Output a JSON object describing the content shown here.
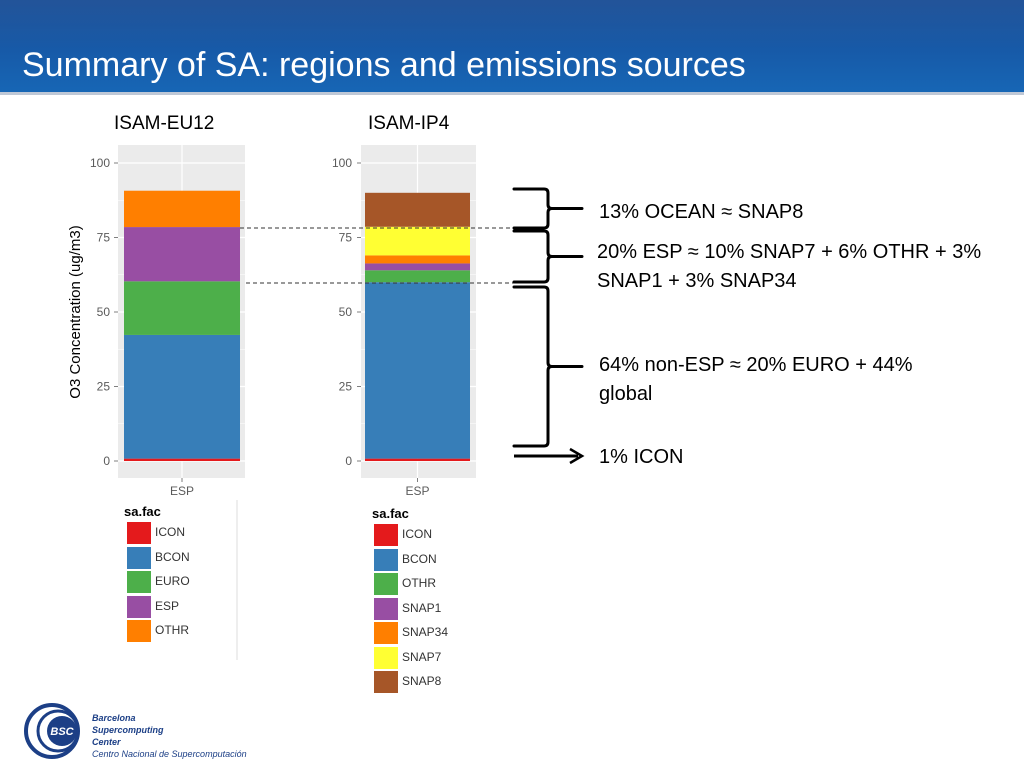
{
  "header": {
    "title": "Summary of SA:  regions and emissions sources"
  },
  "chart_data": [
    {
      "type": "bar",
      "title": "ISAM-EU12",
      "xlabel": "",
      "ylabel": "O3 Concentration (ug/m3)",
      "categories": [
        "ESP"
      ],
      "ylim": [
        0,
        105
      ],
      "yticks": [
        "0",
        "25",
        "50",
        "75",
        "100"
      ],
      "stacked": true,
      "series": [
        {
          "name": "ICON",
          "values": [
            0.8
          ],
          "color": "#e41a1c"
        },
        {
          "name": "BCON",
          "values": [
            41.5
          ],
          "color": "#377eb8"
        },
        {
          "name": "EURO",
          "values": [
            18.0
          ],
          "color": "#4daf4a"
        },
        {
          "name": "ESP",
          "values": [
            18.2
          ],
          "color": "#984ea3"
        },
        {
          "name": "OTHR",
          "values": [
            12.2
          ],
          "color": "#ff7f00"
        }
      ],
      "legend_title": "sa.fac"
    },
    {
      "type": "bar",
      "title": "ISAM-IP4",
      "xlabel": "",
      "ylabel": "",
      "categories": [
        "ESP"
      ],
      "ylim": [
        0,
        105
      ],
      "yticks": [
        "0",
        "25",
        "50",
        "75",
        "100"
      ],
      "stacked": true,
      "series": [
        {
          "name": "ICON",
          "values": [
            0.8
          ],
          "color": "#e41a1c"
        },
        {
          "name": "BCON",
          "values": [
            59.2
          ],
          "color": "#377eb8"
        },
        {
          "name": "OTHR",
          "values": [
            4.0
          ],
          "color": "#4daf4a"
        },
        {
          "name": "SNAP1",
          "values": [
            2.3
          ],
          "color": "#984ea3"
        },
        {
          "name": "SNAP34",
          "values": [
            2.7
          ],
          "color": "#ff7f00"
        },
        {
          "name": "SNAP7",
          "values": [
            9.6
          ],
          "color": "#ffff33"
        },
        {
          "name": "SNAP8",
          "values": [
            11.4
          ],
          "color": "#a65628"
        }
      ],
      "legend_title": "sa.fac"
    }
  ],
  "annotations": [
    {
      "text": "13% OCEAN ≈ SNAP8"
    },
    {
      "text": "20% ESP ≈ 10% SNAP7 + 6% OTHR + 3% SNAP1 + 3% SNAP34"
    },
    {
      "text": "64% non-ESP ≈ 20% EURO + 44% global"
    },
    {
      "text": "1%  ICON"
    }
  ],
  "logo": {
    "badge": "BSC",
    "line1": "Barcelona",
    "line2": "Supercomputing",
    "line3": "Center",
    "line4": "Centro Nacional de Supercomputación"
  }
}
